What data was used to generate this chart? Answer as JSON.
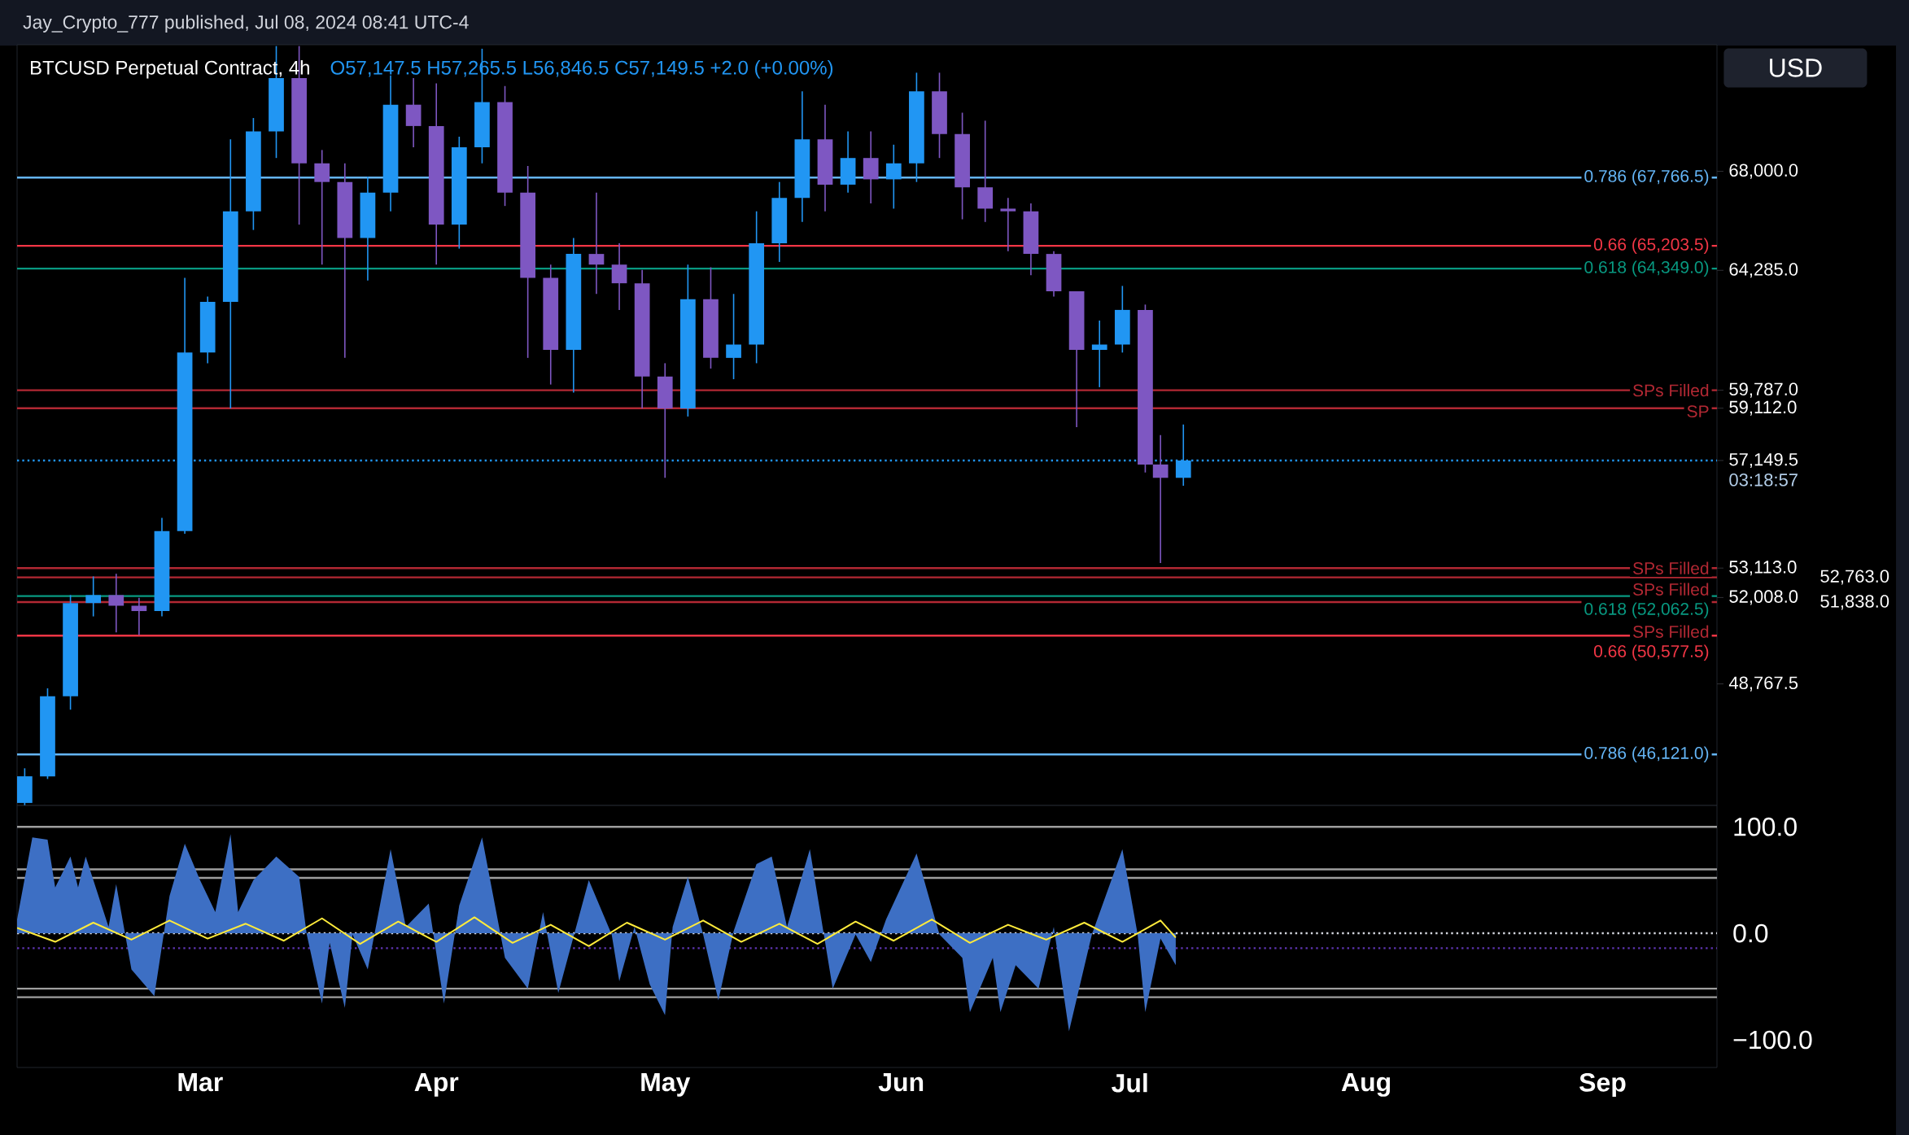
{
  "chart_data": [
    {
      "type": "candlestick",
      "title": "BTCUSD Perpetual Contract, 4h",
      "subtitle": "O57,147.5 H57,265.5 L56,846.5 C57,149.5 +2.0 (+0.00%)",
      "ylabel": "USD",
      "annotations": [
        "Jay_Crypto_777 published, Jul 08, 2024 08:41 UTC-4",
        "03:18:57",
        "52,763.0",
        "51,838.0"
      ],
      "x": [
        "2024-02-07",
        "2024-02-10",
        "2024-02-13",
        "2024-02-16",
        "2024-02-19",
        "2024-02-22",
        "2024-02-25",
        "2024-02-28",
        "2024-03-02",
        "2024-03-05",
        "2024-03-08",
        "2024-03-11",
        "2024-03-14",
        "2024-03-17",
        "2024-03-20",
        "2024-03-23",
        "2024-03-26",
        "2024-03-29",
        "2024-04-01",
        "2024-04-04",
        "2024-04-07",
        "2024-04-10",
        "2024-04-13",
        "2024-04-16",
        "2024-04-19",
        "2024-04-22",
        "2024-04-25",
        "2024-04-28",
        "2024-05-01",
        "2024-05-04",
        "2024-05-07",
        "2024-05-10",
        "2024-05-13",
        "2024-05-16",
        "2024-05-19",
        "2024-05-22",
        "2024-05-25",
        "2024-05-28",
        "2024-05-31",
        "2024-06-03",
        "2024-06-06",
        "2024-06-09",
        "2024-06-12",
        "2024-06-15",
        "2024-06-18",
        "2024-06-21",
        "2024-06-24",
        "2024-06-27",
        "2024-06-30",
        "2024-07-03",
        "2024-07-05",
        "2024-07-08"
      ],
      "ohlc": [
        [
          44300,
          45600,
          44200,
          45300
        ],
        [
          45300,
          48600,
          45200,
          48300
        ],
        [
          48300,
          52100,
          47800,
          51800
        ],
        [
          51800,
          52800,
          51300,
          52100
        ],
        [
          52100,
          52900,
          50700,
          51700
        ],
        [
          51700,
          52000,
          50600,
          51500
        ],
        [
          51500,
          55000,
          51300,
          54500
        ],
        [
          54500,
          64000,
          54400,
          61200
        ],
        [
          61200,
          63300,
          60800,
          63100
        ],
        [
          63100,
          69200,
          59100,
          66500
        ],
        [
          66500,
          70000,
          65800,
          69500
        ],
        [
          69500,
          72700,
          68500,
          71500
        ],
        [
          71500,
          72700,
          66000,
          68300
        ],
        [
          68300,
          68800,
          64500,
          67600
        ],
        [
          67600,
          68300,
          61000,
          65500
        ],
        [
          65500,
          67800,
          63900,
          67200
        ],
        [
          67200,
          71600,
          66500,
          70500
        ],
        [
          70500,
          71500,
          68900,
          69700
        ],
        [
          69700,
          71300,
          64500,
          66000
        ],
        [
          66000,
          69300,
          65100,
          68900
        ],
        [
          68900,
          72600,
          68300,
          70600
        ],
        [
          70600,
          71200,
          66700,
          67200
        ],
        [
          67200,
          68200,
          61000,
          64000
        ],
        [
          64000,
          64500,
          60000,
          61300
        ],
        [
          61300,
          65500,
          59700,
          64900
        ],
        [
          64900,
          67200,
          63400,
          64500
        ],
        [
          64500,
          65300,
          62800,
          63800
        ],
        [
          63800,
          64300,
          59100,
          60300
        ],
        [
          60300,
          60800,
          56500,
          59100
        ],
        [
          59100,
          64500,
          58800,
          63200
        ],
        [
          63200,
          64400,
          60600,
          61000
        ],
        [
          61000,
          63400,
          60200,
          61500
        ],
        [
          61500,
          66500,
          60800,
          65300
        ],
        [
          65300,
          67600,
          64600,
          67000
        ],
        [
          67000,
          71000,
          66100,
          69200
        ],
        [
          69200,
          70500,
          66500,
          67500
        ],
        [
          67500,
          69500,
          67200,
          68500
        ],
        [
          68500,
          69500,
          66800,
          67700
        ],
        [
          67700,
          69000,
          66600,
          68300
        ],
        [
          68300,
          71700,
          67600,
          71000
        ],
        [
          71000,
          71700,
          68500,
          69400
        ],
        [
          69400,
          70200,
          66200,
          67400
        ],
        [
          67400,
          69900,
          66100,
          66600
        ],
        [
          66600,
          67000,
          65000,
          66500
        ],
        [
          66500,
          66800,
          64100,
          64900
        ],
        [
          64900,
          65000,
          63300,
          63500
        ],
        [
          63500,
          63500,
          58400,
          61300
        ],
        [
          61300,
          62400,
          59900,
          61500
        ],
        [
          61500,
          63700,
          61200,
          62800
        ],
        [
          62800,
          63000,
          56700,
          57000
        ],
        [
          57000,
          58100,
          53300,
          56500
        ],
        [
          56500,
          58500,
          56200,
          57149.5
        ]
      ],
      "colors": [
        "#2196f3",
        "#2196f3",
        "#2196f3",
        "#2196f3",
        "#7e57c2",
        "#7e57c2",
        "#2196f3",
        "#2196f3",
        "#2196f3",
        "#2196f3",
        "#2196f3",
        "#2196f3",
        "#7e57c2",
        "#7e57c2",
        "#7e57c2",
        "#2196f3",
        "#2196f3",
        "#7e57c2",
        "#7e57c2",
        "#2196f3",
        "#2196f3",
        "#7e57c2",
        "#7e57c2",
        "#7e57c2",
        "#2196f3",
        "#7e57c2",
        "#7e57c2",
        "#7e57c2",
        "#7e57c2",
        "#2196f3",
        "#7e57c2",
        "#2196f3",
        "#2196f3",
        "#2196f3",
        "#2196f3",
        "#7e57c2",
        "#2196f3",
        "#7e57c2",
        "#2196f3",
        "#2196f3",
        "#7e57c2",
        "#7e57c2",
        "#7e57c2",
        "#7e57c2",
        "#7e57c2",
        "#7e57c2",
        "#7e57c2",
        "#2196f3",
        "#2196f3",
        "#7e57c2",
        "#7e57c2",
        "#2196f3"
      ],
      "xlim": [
        "2024-02-06",
        "2024-09-16"
      ],
      "ylim": [
        44205,
        72750
      ],
      "yticks": [
        {
          "value": 68000,
          "label": "68,000.0"
        },
        {
          "value": 64285,
          "label": "64,285.0"
        },
        {
          "value": 59787,
          "label": "59,787.0"
        },
        {
          "value": 59112,
          "label": "59,112.0"
        },
        {
          "value": 57149.5,
          "label": "57,149.5"
        },
        {
          "value": 53113,
          "label": "53,113.0"
        },
        {
          "value": 52008,
          "label": "52,008.0"
        },
        {
          "value": 48767.5,
          "label": "48,767.5"
        }
      ],
      "tick_labels": "y",
      "ref_lines": [
        {
          "axis": "y",
          "value": 67766.5,
          "label": "0.786 (67,766.5)",
          "color": "#64b5f6"
        },
        {
          "axis": "y",
          "value": 65203.5,
          "label": "0.66 (65,203.5)",
          "color": "#f23645"
        },
        {
          "axis": "y",
          "value": 64349,
          "label": "0.618 (64,349.0)",
          "color": "#089981"
        },
        {
          "axis": "y",
          "value": 59787,
          "label": "SPs Filled",
          "color": "#b22833"
        },
        {
          "axis": "y",
          "value": 59112,
          "label": "SP",
          "color": "#b22833"
        },
        {
          "axis": "y",
          "value": 57149.5,
          "color": "#2196f3",
          "line_style": "dotted"
        },
        {
          "axis": "y",
          "value": 53113,
          "label": "SPs Filled",
          "color": "#b22833"
        },
        {
          "axis": "y",
          "value": 52763,
          "label": "SPs Filled",
          "color": "#b22833"
        },
        {
          "axis": "y",
          "value": 52062.5,
          "label": "0.618 (52,062.5)",
          "color": "#089981"
        },
        {
          "axis": "y",
          "value": 51838,
          "label": "SPs Filled",
          "color": "#b22833"
        },
        {
          "axis": "y",
          "value": 50577.5,
          "label": "0.66 (50,577.5)",
          "color": "#f23645"
        },
        {
          "axis": "y",
          "value": 46121,
          "label": "0.786 (46,121.0)",
          "color": "#64b5f6"
        }
      ]
    },
    {
      "type": "line",
      "xlim": [
        "2024-02-06",
        "2024-09-16"
      ],
      "ylim": [
        -126,
        120
      ],
      "xticks": [
        {
          "value": "2024-03-01",
          "label": "Mar"
        },
        {
          "value": "2024-04-01",
          "label": "Apr"
        },
        {
          "value": "2024-05-01",
          "label": "May"
        },
        {
          "value": "2024-06-01",
          "label": "Jun"
        },
        {
          "value": "2024-07-01",
          "label": "Jul"
        },
        {
          "value": "2024-08-01",
          "label": "Aug"
        },
        {
          "value": "2024-09-01",
          "label": "Sep"
        }
      ],
      "yticks": [
        {
          "value": 100,
          "label": "100.0"
        },
        {
          "value": 0,
          "label": "0.0"
        },
        {
          "value": -100,
          "label": "−100.0"
        }
      ],
      "ref_lines": [
        {
          "axis": "y",
          "value": 100,
          "color": "#9e9e9e"
        },
        {
          "axis": "y",
          "value": 60,
          "color": "#9e9e9e"
        },
        {
          "axis": "y",
          "value": 52,
          "color": "#9e9e9e"
        },
        {
          "axis": "y",
          "value": -52,
          "color": "#9e9e9e"
        },
        {
          "axis": "y",
          "value": -60,
          "color": "#9e9e9e"
        },
        {
          "axis": "y",
          "value": 0,
          "color": "#d1d4dc",
          "line_style": "dotted"
        },
        {
          "axis": "y",
          "value": -14,
          "color": "#5e35b1",
          "line_style": "dotted"
        }
      ],
      "series": [
        {
          "type": "area",
          "color": "#3d6fc4",
          "x": [
            "2024-02-06",
            "2024-02-08",
            "2024-02-10",
            "2024-02-11",
            "2024-02-13",
            "2024-02-14",
            "2024-02-15",
            "2024-02-18",
            "2024-02-19",
            "2024-02-21",
            "2024-02-24",
            "2024-02-26",
            "2024-02-28",
            "2024-03-01",
            "2024-03-03",
            "2024-03-05",
            "2024-03-06",
            "2024-03-08",
            "2024-03-11",
            "2024-03-14",
            "2024-03-15",
            "2024-03-16",
            "2024-03-17",
            "2024-03-18",
            "2024-03-20",
            "2024-03-21",
            "2024-03-23",
            "2024-03-26",
            "2024-03-28",
            "2024-03-31",
            "2024-04-02",
            "2024-04-04",
            "2024-04-07",
            "2024-04-10",
            "2024-04-13",
            "2024-04-15",
            "2024-04-17",
            "2024-04-21",
            "2024-04-24",
            "2024-04-25",
            "2024-04-27",
            "2024-04-29",
            "2024-05-01",
            "2024-05-02",
            "2024-05-04",
            "2024-05-06",
            "2024-05-08",
            "2024-05-10",
            "2024-05-13",
            "2024-05-15",
            "2024-05-17",
            "2024-05-20",
            "2024-05-23",
            "2024-05-26",
            "2024-05-28",
            "2024-05-30",
            "2024-06-03",
            "2024-06-06",
            "2024-06-09",
            "2024-06-10",
            "2024-06-13",
            "2024-06-14",
            "2024-06-16",
            "2024-06-19",
            "2024-06-21",
            "2024-06-23",
            "2024-06-26",
            "2024-06-30",
            "2024-07-02",
            "2024-07-03",
            "2024-07-05",
            "2024-07-07"
          ],
          "values": [
            13,
            90,
            88,
            43,
            72,
            43,
            72,
            6,
            46,
            -34,
            -59,
            35,
            84,
            50,
            20,
            93,
            20,
            50,
            72,
            53,
            -1,
            -34,
            -66,
            -9,
            -70,
            -1,
            -34,
            79,
            6,
            28,
            -66,
            26,
            90,
            -23,
            -52,
            20,
            -56,
            50,
            -1,
            -45,
            6,
            -48,
            -77,
            6,
            53,
            -1,
            -63,
            2,
            65,
            72,
            6,
            79,
            -52,
            -1,
            -27,
            13,
            75,
            -1,
            -23,
            -74,
            -23,
            -74,
            -30,
            -52,
            6,
            -92,
            -1,
            79,
            -1,
            -74,
            -5,
            -30
          ]
        },
        {
          "color": "#ffeb3b",
          "x": [
            "2024-02-06",
            "2024-02-11",
            "2024-02-16",
            "2024-02-21",
            "2024-02-26",
            "2024-03-02",
            "2024-03-07",
            "2024-03-12",
            "2024-03-17",
            "2024-03-22",
            "2024-03-27",
            "2024-04-01",
            "2024-04-06",
            "2024-04-11",
            "2024-04-16",
            "2024-04-21",
            "2024-04-26",
            "2024-05-01",
            "2024-05-06",
            "2024-05-11",
            "2024-05-16",
            "2024-05-21",
            "2024-05-26",
            "2024-05-31",
            "2024-06-05",
            "2024-06-10",
            "2024-06-15",
            "2024-06-20",
            "2024-06-25",
            "2024-06-30",
            "2024-07-05",
            "2024-07-07"
          ],
          "values": [
            5,
            -8,
            10,
            -6,
            12,
            -5,
            9,
            -7,
            14,
            -10,
            11,
            -8,
            15,
            -9,
            8,
            -12,
            10,
            -6,
            12,
            -8,
            9,
            -10,
            11,
            -7,
            13,
            -9,
            8,
            -6,
            10,
            -8,
            12,
            -4
          ]
        }
      ]
    }
  ]
}
